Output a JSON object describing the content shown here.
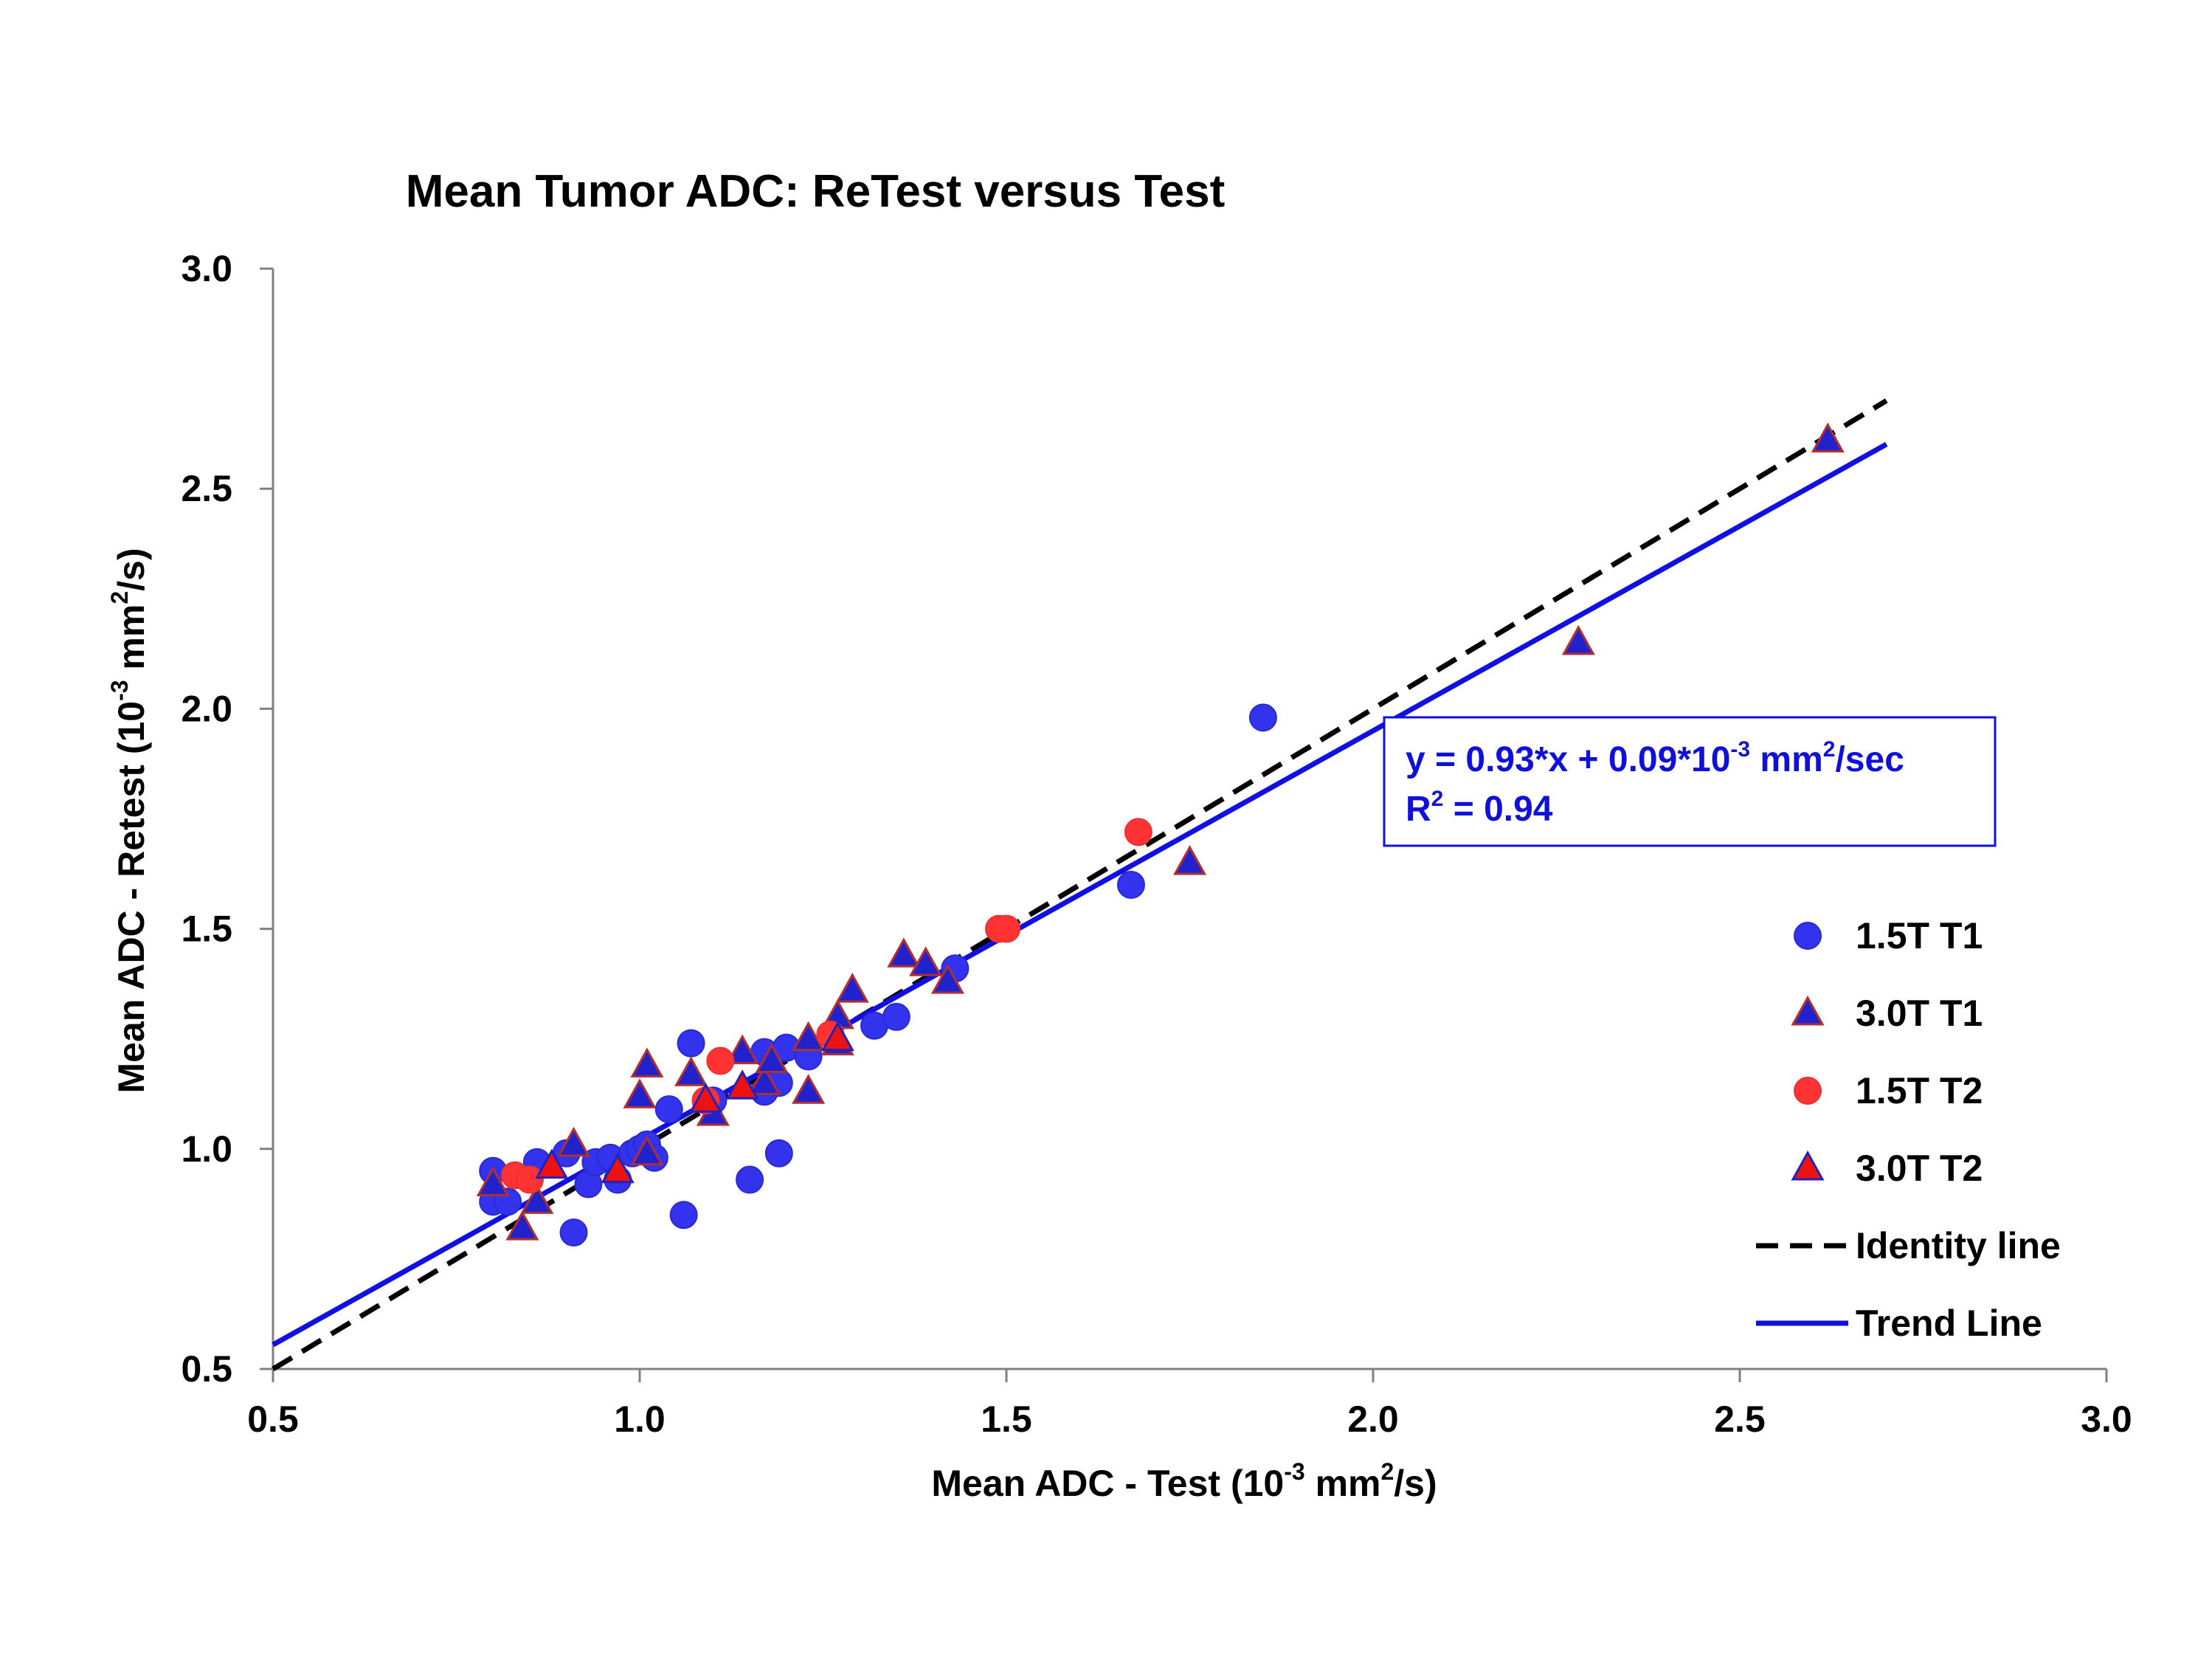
{
  "chart_data": {
    "type": "scatter",
    "title": "Mean Tumor ADC: ReTest versus Test",
    "xlabel": {
      "prefix": "Mean ADC - Test (10",
      "exp1": "-3",
      "mid": " mm",
      "exp2": "2",
      "suffix": "/s)"
    },
    "ylabel": {
      "prefix": "Mean ADC - Retest (10",
      "exp1": "-3",
      "mid": " mm",
      "exp2": "2",
      "suffix": "/s)"
    },
    "xlim": [
      0.5,
      3.0
    ],
    "ylim": [
      0.5,
      3.0
    ],
    "xticks": [
      "0.5",
      "1.0",
      "1.5",
      "2.0",
      "2.5",
      "3.0"
    ],
    "yticks": [
      "0.5",
      "1.0",
      "1.5",
      "2.0",
      "2.5",
      "3.0"
    ],
    "grid": false,
    "legend_position": "right",
    "series": [
      {
        "name": "1.5T T1",
        "marker": "circle",
        "fill": "#3333ee",
        "edge": "#2a2ad0",
        "points": [
          [
            0.8,
            0.88
          ],
          [
            0.8,
            0.95
          ],
          [
            0.82,
            0.88
          ],
          [
            0.86,
            0.97
          ],
          [
            0.9,
            0.99
          ],
          [
            0.91,
            0.81
          ],
          [
            0.93,
            0.92
          ],
          [
            0.94,
            0.97
          ],
          [
            0.96,
            0.98
          ],
          [
            0.97,
            0.93
          ],
          [
            0.99,
            0.99
          ],
          [
            1.0,
            1.0
          ],
          [
            1.01,
            1.01
          ],
          [
            1.02,
            0.98
          ],
          [
            1.04,
            1.09
          ],
          [
            1.06,
            0.85
          ],
          [
            1.07,
            1.24
          ],
          [
            1.1,
            1.11
          ],
          [
            1.15,
            0.93
          ],
          [
            1.17,
            1.13
          ],
          [
            1.17,
            1.22
          ],
          [
            1.19,
            0.99
          ],
          [
            1.19,
            1.15
          ],
          [
            1.2,
            1.23
          ],
          [
            1.23,
            1.21
          ],
          [
            1.32,
            1.28
          ],
          [
            1.35,
            1.3
          ],
          [
            1.43,
            1.41
          ],
          [
            1.67,
            1.6
          ],
          [
            1.85,
            1.98
          ]
        ]
      },
      {
        "name": "3.0T T1",
        "marker": "triangle",
        "fill": "#2222cc",
        "edge": "#b03030",
        "points": [
          [
            0.8,
            0.92
          ],
          [
            0.84,
            0.82
          ],
          [
            0.86,
            0.88
          ],
          [
            0.91,
            1.01
          ],
          [
            0.97,
            0.95
          ],
          [
            1.0,
            1.12
          ],
          [
            1.01,
            0.99
          ],
          [
            1.01,
            1.19
          ],
          [
            1.07,
            1.17
          ],
          [
            1.1,
            1.08
          ],
          [
            1.14,
            1.22
          ],
          [
            1.17,
            1.15
          ],
          [
            1.18,
            1.2
          ],
          [
            1.23,
            1.13
          ],
          [
            1.23,
            1.25
          ],
          [
            1.27,
            1.24
          ],
          [
            1.27,
            1.3
          ],
          [
            1.29,
            1.36
          ],
          [
            1.36,
            1.44
          ],
          [
            1.39,
            1.42
          ],
          [
            1.42,
            1.38
          ],
          [
            1.75,
            1.65
          ],
          [
            2.28,
            2.15
          ],
          [
            2.62,
            2.61
          ]
        ]
      },
      {
        "name": "1.5T T2",
        "marker": "circle",
        "fill": "#ff3333",
        "edge": "#ee3030",
        "points": [
          [
            0.83,
            0.94
          ],
          [
            0.85,
            0.93
          ],
          [
            1.09,
            1.11
          ],
          [
            1.11,
            1.2
          ],
          [
            1.26,
            1.26
          ],
          [
            1.49,
            1.5
          ],
          [
            1.5,
            1.5
          ],
          [
            1.68,
            1.72
          ]
        ]
      },
      {
        "name": "3.0T T2",
        "marker": "triangle",
        "fill": "#ee1111",
        "edge": "#2222bb",
        "points": [
          [
            0.88,
            0.96
          ],
          [
            0.97,
            0.95
          ],
          [
            1.09,
            1.11
          ],
          [
            1.14,
            1.14
          ],
          [
            1.27,
            1.25
          ]
        ]
      }
    ],
    "lines": [
      {
        "name": "Identity line",
        "style": "dashed",
        "color": "#000000",
        "slope": 1.0,
        "intercept": 0.0,
        "x_range": [
          0.5,
          2.7
        ]
      },
      {
        "name": "Trend Line",
        "style": "solid",
        "color": "#1010e0",
        "slope": 0.93,
        "intercept": 0.09,
        "x_range": [
          0.5,
          2.7
        ]
      }
    ],
    "annotation": {
      "eq_prefix": "y = 0.93*x + 0.09*10",
      "eq_exp": "-3",
      "eq_mid": " mm",
      "eq_exp2": "2",
      "eq_suffix": "/sec",
      "r2_prefix": "R",
      "r2_exp": "2",
      "r2_suffix": " = 0.94",
      "color": "#1010d8"
    }
  }
}
